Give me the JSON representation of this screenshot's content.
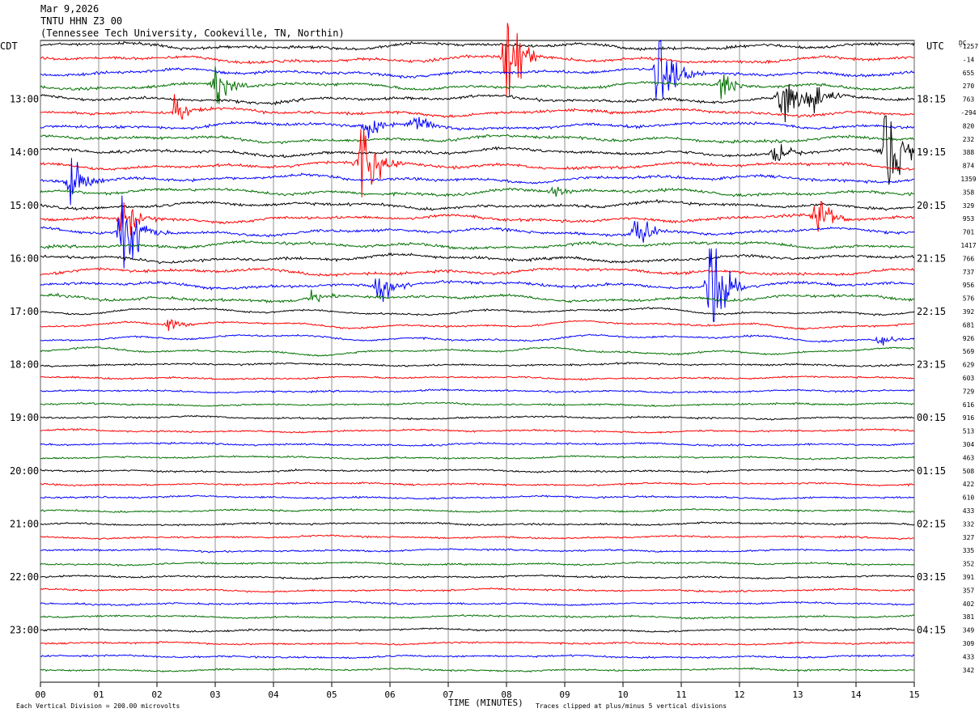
{
  "header": {
    "date": "Mar 9,2026",
    "station": "TNTU HHN Z3 00",
    "location": "(Tennessee Tech University, Cookeville, TN, Northin)"
  },
  "footer": {
    "scale_note": "Each Vertical Division = 200.00 microvolts",
    "clip_note": "Traces clipped at plus/minus 5 vertical divisions"
  },
  "chart_data": {
    "type": "line",
    "title": "",
    "xlabel": "TIME (MINUTES)",
    "ylabel_left": "CDT",
    "ylabel_right": "UTC",
    "dc_label": "DC",
    "x_ticks": [
      "00",
      "01",
      "02",
      "03",
      "04",
      "05",
      "06",
      "07",
      "08",
      "09",
      "10",
      "11",
      "12",
      "13",
      "14",
      "15"
    ],
    "xlim": [
      0,
      15
    ],
    "left_hour_labels": [
      "13:00",
      "14:00",
      "15:00",
      "16:00",
      "17:00",
      "18:00",
      "19:00",
      "20:00",
      "21:00",
      "22:00",
      "23:00"
    ],
    "right_hour_labels": [
      "18:15",
      "19:15",
      "20:15",
      "21:15",
      "22:15",
      "23:15",
      "00:15",
      "01:15",
      "02:15",
      "03:15",
      "04:15"
    ],
    "trace_colors": [
      "#000000",
      "#ff0000",
      "#0000ff",
      "#007000"
    ],
    "dc_offsets": [
      "-1257",
      "-14",
      "655",
      "270",
      "763",
      "-294",
      "820",
      "232",
      "388",
      "874",
      "1359",
      "358",
      "329",
      "953",
      "701",
      "1417",
      "766",
      "737",
      "956",
      "576",
      "392",
      "681",
      "926",
      "569",
      "629",
      "603",
      "729",
      "616",
      "916",
      "513",
      "304",
      "463",
      "508",
      "422",
      "610",
      "433",
      "332",
      "327",
      "335",
      "352",
      "391",
      "357",
      "402",
      "381",
      "349",
      "309",
      "433",
      "342"
    ],
    "events": [
      {
        "trace": 1,
        "minute": 8.0,
        "amplitude": "clipped"
      },
      {
        "trace": 3,
        "minute": 3.0,
        "amplitude": "large"
      },
      {
        "trace": 2,
        "minute": 10.6,
        "amplitude": "clipped"
      },
      {
        "trace": 4,
        "minute": 12.7,
        "amplitude": "large"
      },
      {
        "trace": 4,
        "minute": 13.2,
        "amplitude": "large"
      },
      {
        "trace": 3,
        "minute": 11.7,
        "amplitude": "medium"
      },
      {
        "trace": 5,
        "minute": 2.3,
        "amplitude": "medium"
      },
      {
        "trace": 6,
        "minute": 5.6,
        "amplitude": "medium"
      },
      {
        "trace": 6,
        "minute": 6.4,
        "amplitude": "medium"
      },
      {
        "trace": 8,
        "minute": 12.6,
        "amplitude": "medium"
      },
      {
        "trace": 8,
        "minute": 14.5,
        "amplitude": "clipped"
      },
      {
        "trace": 9,
        "minute": 5.5,
        "amplitude": "clipped"
      },
      {
        "trace": 10,
        "minute": 0.5,
        "amplitude": "large"
      },
      {
        "trace": 11,
        "minute": 8.8,
        "amplitude": "small"
      },
      {
        "trace": 13,
        "minute": 1.4,
        "amplitude": "large"
      },
      {
        "trace": 13,
        "minute": 13.3,
        "amplitude": "large"
      },
      {
        "trace": 14,
        "minute": 1.4,
        "amplitude": "clipped"
      },
      {
        "trace": 14,
        "minute": 10.2,
        "amplitude": "large"
      },
      {
        "trace": 18,
        "minute": 5.8,
        "amplitude": "large"
      },
      {
        "trace": 18,
        "minute": 11.5,
        "amplitude": "clipped"
      },
      {
        "trace": 19,
        "minute": 4.6,
        "amplitude": "small"
      },
      {
        "trace": 21,
        "minute": 2.2,
        "amplitude": "small"
      },
      {
        "trace": 22,
        "minute": 14.4,
        "amplitude": "small"
      }
    ]
  }
}
